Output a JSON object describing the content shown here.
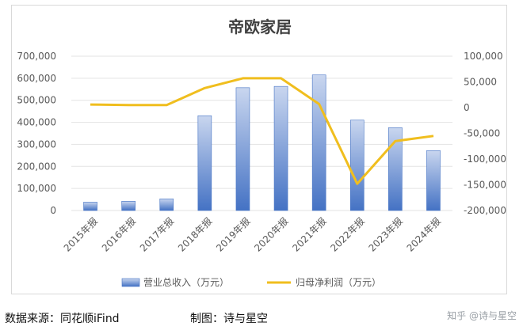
{
  "chart_data": {
    "type": "bar",
    "title": "帝欧家居",
    "categories": [
      "2015年报",
      "2016年报",
      "2017年报",
      "2018年报",
      "2019年报",
      "2020年报",
      "2021年报",
      "2022年报",
      "2023年报",
      "2024年报"
    ],
    "series": [
      {
        "name": "营业总收入（万元）",
        "type": "bar",
        "axis": "left",
        "values": [
          38000,
          42000,
          53000,
          430000,
          557000,
          563000,
          615000,
          410000,
          376000,
          272000
        ]
      },
      {
        "name": "归母净利润（万元）",
        "type": "line",
        "axis": "right",
        "values": [
          6000,
          5000,
          5000,
          38000,
          57000,
          57000,
          7000,
          -148000,
          -65000,
          -55000
        ]
      }
    ],
    "ylim_left": [
      0,
      700000
    ],
    "yticks_left": [
      "0",
      "100,000",
      "200,000",
      "300,000",
      "400,000",
      "500,000",
      "600,000",
      "700,000"
    ],
    "ylim_right": [
      -200000,
      100000
    ],
    "yticks_right": [
      "-200,000",
      "-150,000",
      "-100,000",
      "-50,000",
      "0",
      "50,000",
      "100,000"
    ],
    "legend_position": "bottom",
    "colors": {
      "bar": "#4472c4",
      "bar_light": "#c9d6ef",
      "line": "#f0be1e"
    }
  },
  "footer": {
    "source": "数据来源：同花顺iFind",
    "maker": "制图：诗与星空",
    "watermark": "知乎 @诗与星空"
  }
}
